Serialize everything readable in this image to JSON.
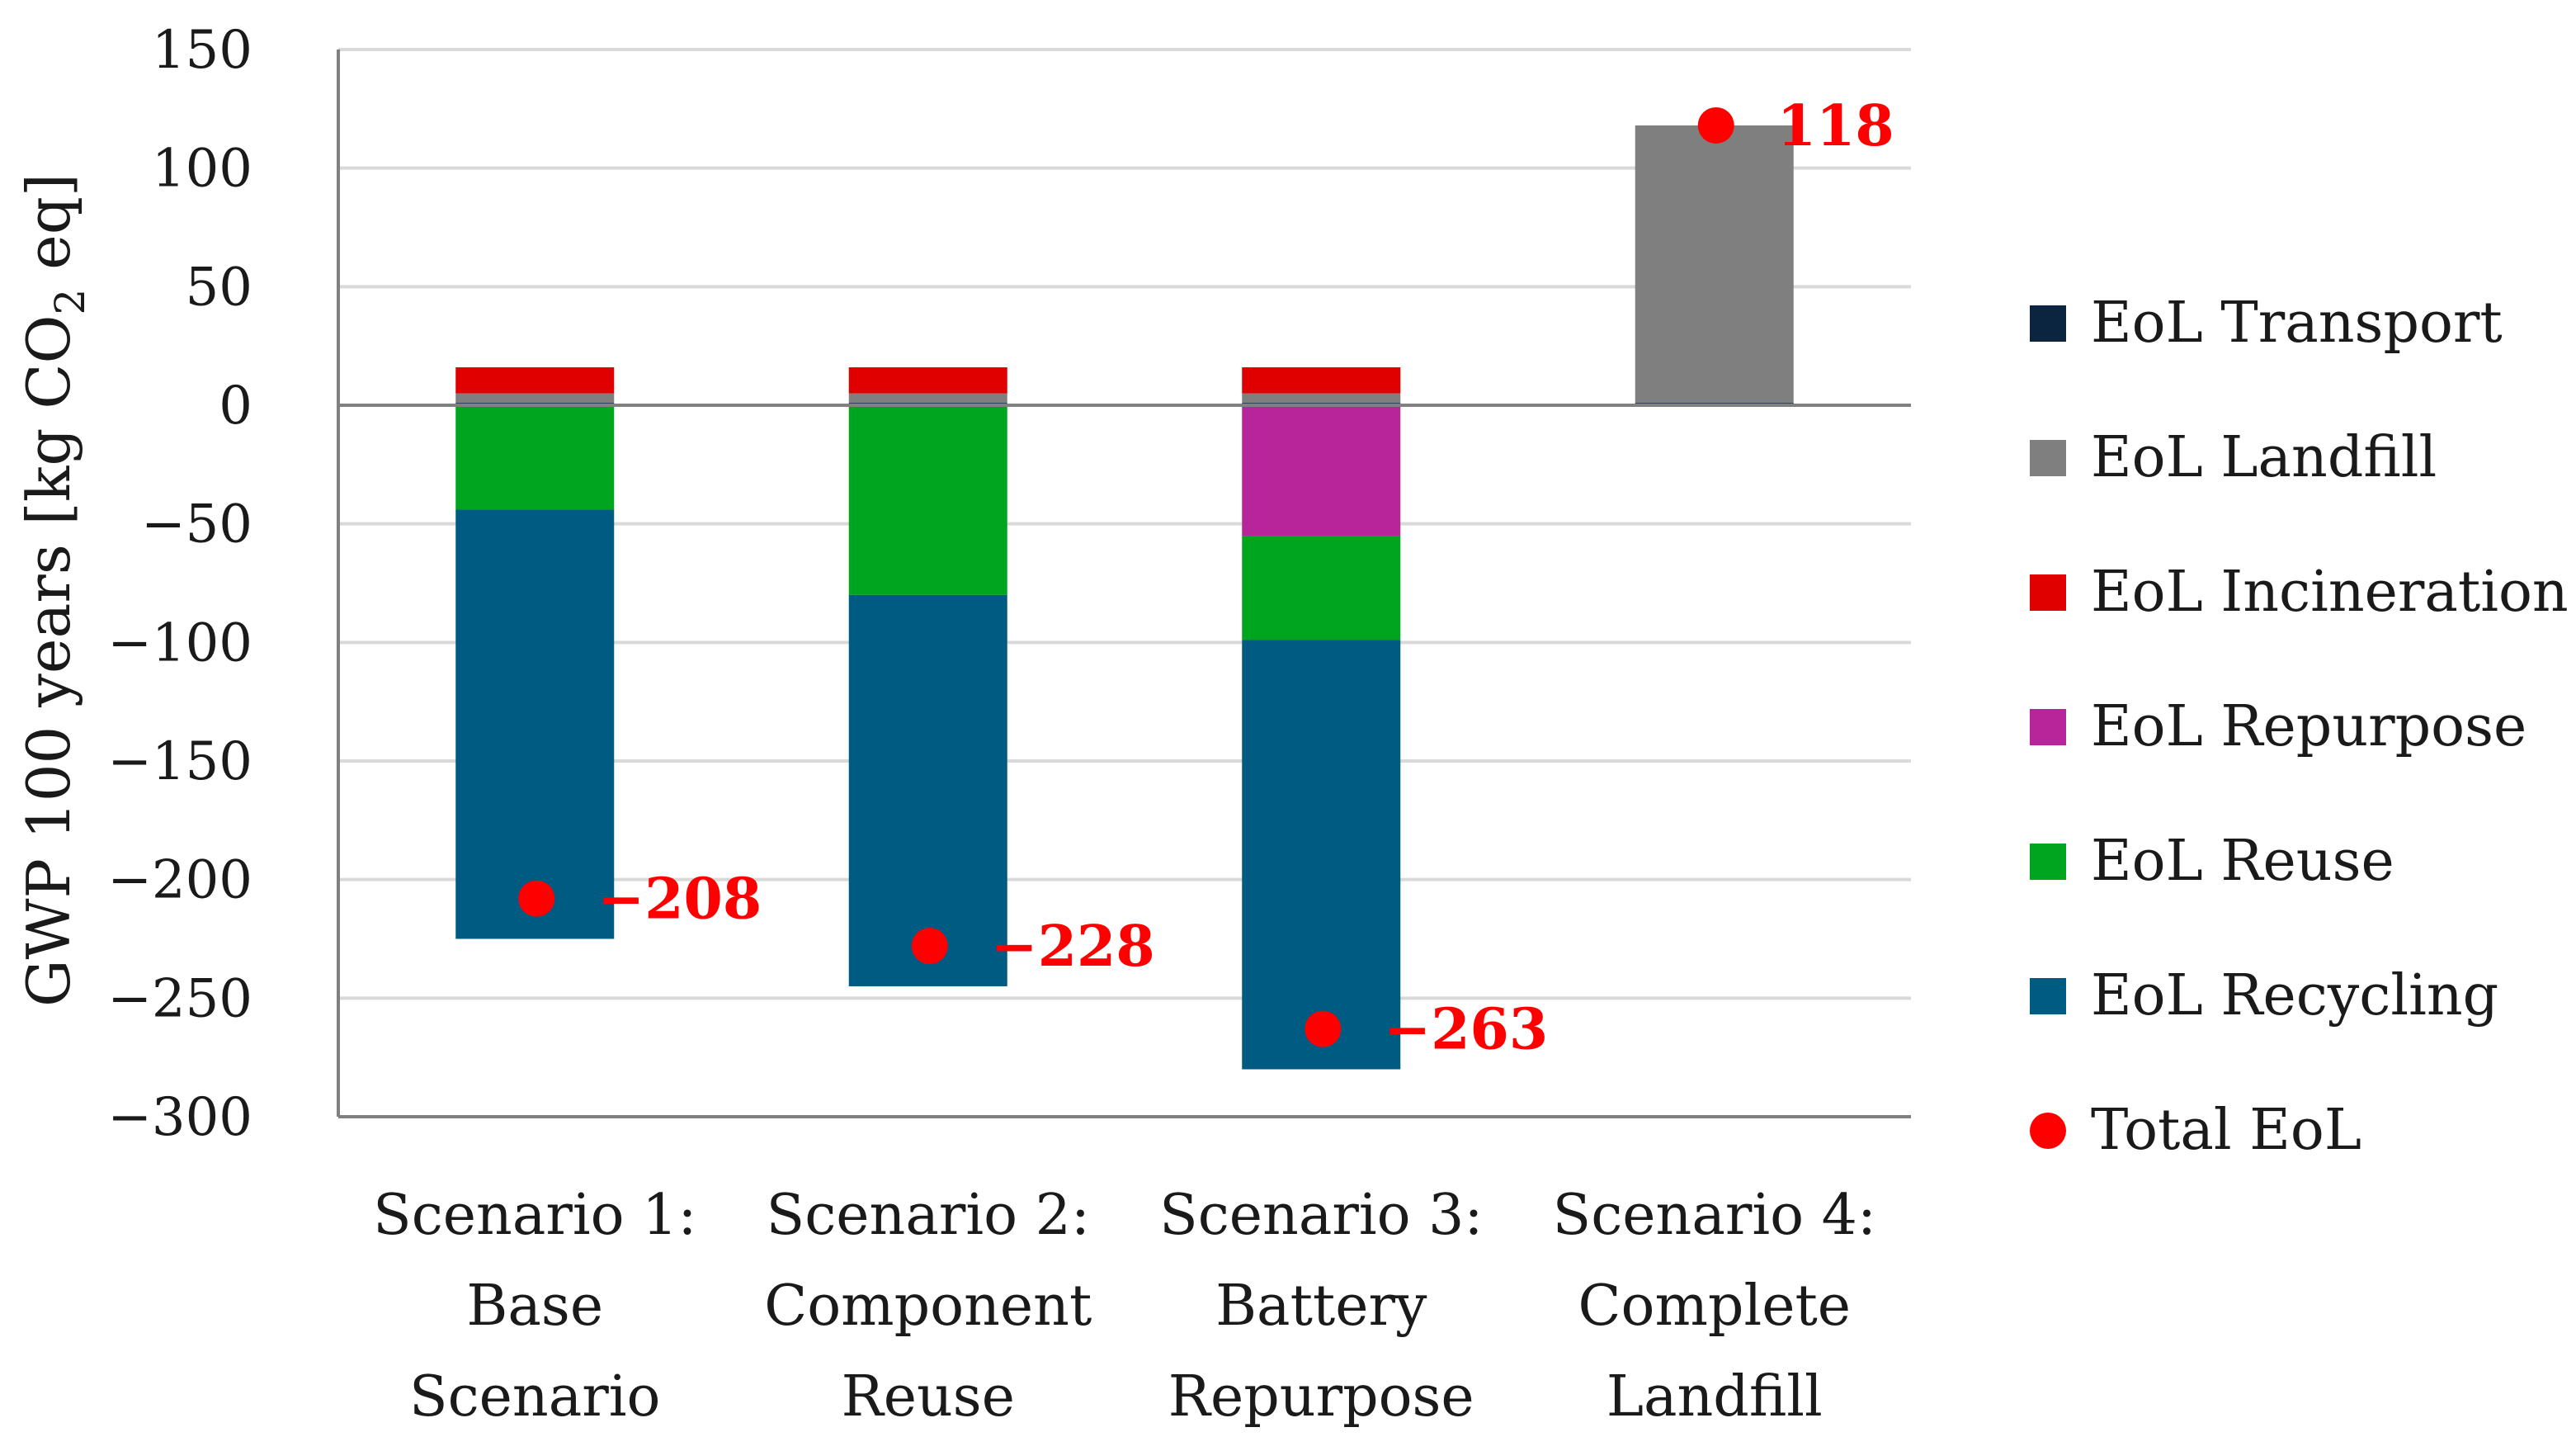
{
  "chart_data": {
    "type": "bar",
    "stacked": true,
    "title": "",
    "ylabel": {
      "prefix": "GWP 100 years [kg  CO",
      "subscript": "2",
      "suffix": " eq]"
    },
    "xlabel": "",
    "ylim": [
      -300,
      150
    ],
    "yticks": [
      150,
      100,
      50,
      0,
      -50,
      -100,
      -150,
      -200,
      -250,
      -300
    ],
    "ytick_labels": [
      "150",
      "100",
      "50",
      "0",
      "−50",
      "−100",
      "−150",
      "−200",
      "−250",
      "−300"
    ],
    "grid": true,
    "legend_position": "right",
    "categories": [
      [
        "Scenario 1:",
        "Base",
        "Scenario"
      ],
      [
        "Scenario 2:",
        "Component",
        "Reuse"
      ],
      [
        "Scenario 3:",
        "Battery",
        "Repurpose"
      ],
      [
        "Scenario 4:",
        "Complete",
        "Landfill"
      ]
    ],
    "series": [
      {
        "name": "EoL Transport",
        "color": "#0b2540",
        "values": [
          1,
          1,
          1,
          1
        ]
      },
      {
        "name": "EoL Landfill",
        "color": "#7f7f7f",
        "values": [
          4,
          4,
          4,
          117
        ]
      },
      {
        "name": "EoL Incineration",
        "color": "#e00000",
        "values": [
          11,
          11,
          11,
          0
        ]
      },
      {
        "name": "EoL Repurpose",
        "color": "#b8259a",
        "values": [
          0,
          0,
          -55,
          0
        ]
      },
      {
        "name": "EoL Reuse",
        "color": "#00a51f",
        "values": [
          -44,
          -80,
          -44,
          0
        ]
      },
      {
        "name": "EoL Recycling",
        "color": "#005b82",
        "values": [
          -181,
          -165,
          -181,
          0
        ]
      }
    ],
    "total": {
      "name": "Total EoL",
      "color": "#ff0000",
      "values": [
        -208,
        -228,
        -263,
        118
      ],
      "labels": [
        "−208",
        "−228",
        "−263",
        "118"
      ]
    }
  }
}
